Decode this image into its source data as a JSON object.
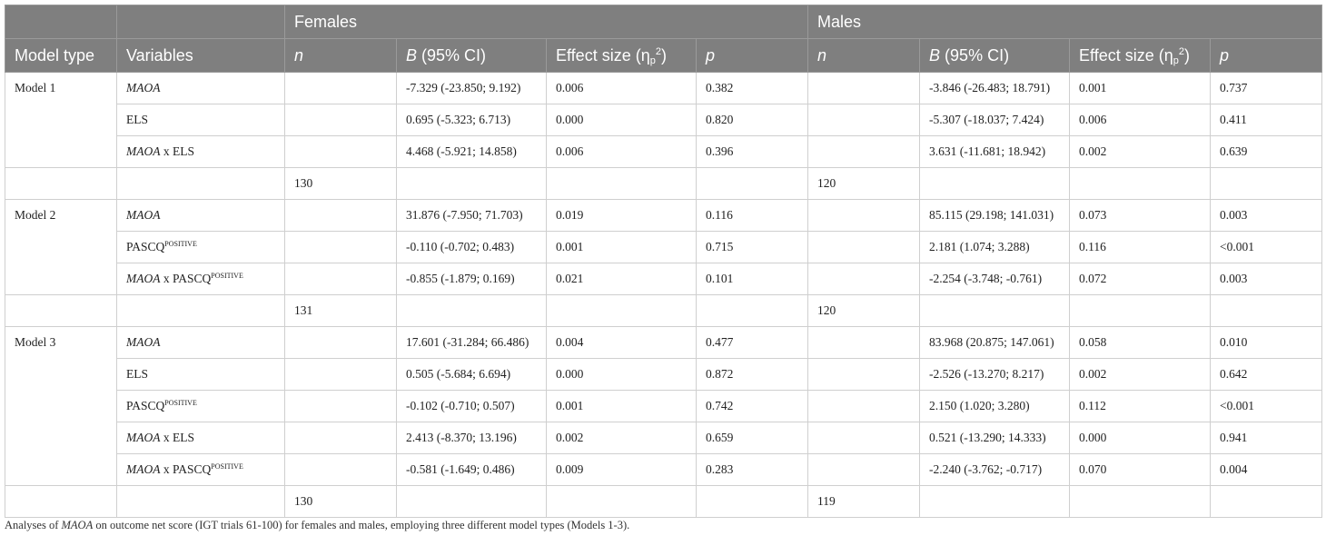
{
  "header": {
    "group_females": "Females",
    "group_males": "Males",
    "col_model_type": "Model type",
    "col_variables": "Variables",
    "col_n": "n",
    "col_b_letter": "B",
    "col_b_rest": " (95% CI)",
    "col_effect_text": "Effect size (η",
    "col_effect_sub": "p",
    "col_effect_sup": "2",
    "col_effect_close": ")",
    "col_p": "p"
  },
  "models": [
    {
      "label": "Model 1",
      "rows": [
        {
          "v_italic": "MAOA",
          "v_text": "",
          "v_sup": "",
          "f_b": "-7.329 (-23.850; 9.192)",
          "f_es": "0.006",
          "f_p": "0.382",
          "m_b": "-3.846 (-26.483; 18.791)",
          "m_es": "0.001",
          "m_p": "0.737"
        },
        {
          "v_italic": "",
          "v_text": "ELS",
          "v_sup": "",
          "f_b": "0.695 (-5.323; 6.713)",
          "f_es": "0.000",
          "f_p": "0.820",
          "m_b": "-5.307 (-18.037; 7.424)",
          "m_es": "0.006",
          "m_p": "0.411"
        },
        {
          "v_italic": "MAOA",
          "v_text": " x ELS",
          "v_sup": "",
          "f_b": "4.468 (-5.921; 14.858)",
          "f_es": "0.006",
          "f_p": "0.396",
          "m_b": "3.631 (-11.681; 18.942)",
          "m_es": "0.002",
          "m_p": "0.639"
        }
      ],
      "n_females": "130",
      "n_males": "120"
    },
    {
      "label": "Model 2",
      "rows": [
        {
          "v_italic": "MAOA",
          "v_text": "",
          "v_sup": "",
          "f_b": "31.876 (-7.950; 71.703)",
          "f_es": "0.019",
          "f_p": "0.116",
          "m_b": "85.115 (29.198; 141.031)",
          "m_es": "0.073",
          "m_p": "0.003"
        },
        {
          "v_italic": "",
          "v_text": "PASCQ",
          "v_sup": "POSITIVE",
          "f_b": "-0.110 (-0.702; 0.483)",
          "f_es": "0.001",
          "f_p": "0.715",
          "m_b": "2.181 (1.074; 3.288)",
          "m_es": "0.116",
          "m_p": "<0.001"
        },
        {
          "v_italic": "MAOA",
          "v_text": " x PASCQ",
          "v_sup": "POSITIVE",
          "f_b": "-0.855 (-1.879; 0.169)",
          "f_es": "0.021",
          "f_p": "0.101",
          "m_b": "-2.254 (-3.748; -0.761)",
          "m_es": "0.072",
          "m_p": "0.003"
        }
      ],
      "n_females": "131",
      "n_males": "120"
    },
    {
      "label": "Model 3",
      "rows": [
        {
          "v_italic": "MAOA",
          "v_text": "",
          "v_sup": "",
          "f_b": "17.601 (-31.284; 66.486)",
          "f_es": "0.004",
          "f_p": "0.477",
          "m_b": "83.968 (20.875; 147.061)",
          "m_es": "0.058",
          "m_p": "0.010"
        },
        {
          "v_italic": "",
          "v_text": "ELS",
          "v_sup": "",
          "f_b": "0.505 (-5.684; 6.694)",
          "f_es": "0.000",
          "f_p": "0.872",
          "m_b": "-2.526 (-13.270; 8.217)",
          "m_es": "0.002",
          "m_p": "0.642"
        },
        {
          "v_italic": "",
          "v_text": "PASCQ",
          "v_sup": "POSITIVE",
          "f_b": "-0.102 (-0.710; 0.507)",
          "f_es": "0.001",
          "f_p": "0.742",
          "m_b": "2.150 (1.020; 3.280)",
          "m_es": "0.112",
          "m_p": "<0.001"
        },
        {
          "v_italic": "MAOA",
          "v_text": " x ELS",
          "v_sup": "",
          "f_b": "2.413 (-8.370; 13.196)",
          "f_es": "0.002",
          "f_p": "0.659",
          "m_b": "0.521 (-13.290; 14.333)",
          "m_es": "0.000",
          "m_p": "0.941"
        },
        {
          "v_italic": "MAOA",
          "v_text": " x PASCQ",
          "v_sup": "POSITIVE",
          "f_b": "-0.581 (-1.649; 0.486)",
          "f_es": "0.009",
          "f_p": "0.283",
          "m_b": "-2.240 (-3.762; -0.717)",
          "m_es": "0.070",
          "m_p": "0.004"
        }
      ],
      "n_females": "130",
      "n_males": "119"
    }
  ],
  "caption": {
    "prefix": "Analyses of ",
    "italic": "MAOA",
    "suffix": " on outcome net score (IGT trials 61-100) for females and males, employing three different model types (Models 1-3)."
  },
  "colors": {
    "header_bg": "#7f7f7f",
    "header_text": "#ffffff",
    "border": "#cfcfcf"
  }
}
